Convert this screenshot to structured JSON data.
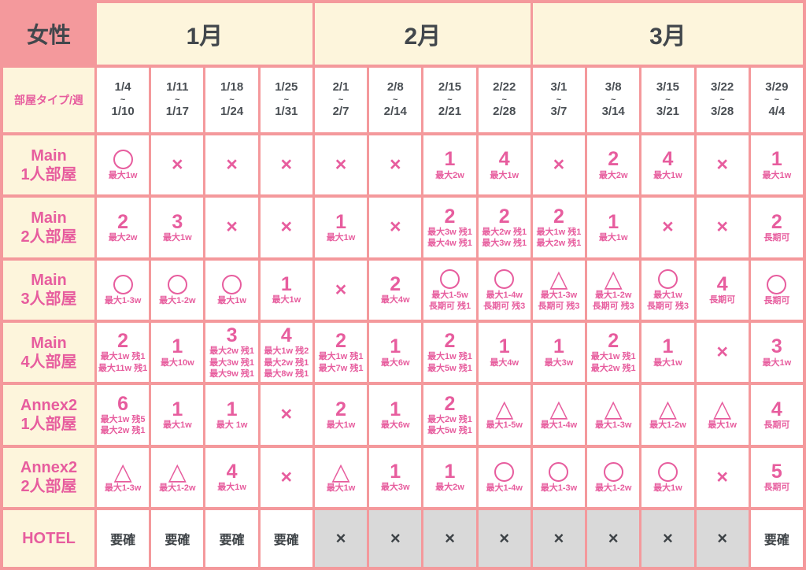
{
  "header": {
    "corner": "女性",
    "months": [
      {
        "label": "1月",
        "span": 4
      },
      {
        "label": "2月",
        "span": 4
      },
      {
        "label": "3月",
        "span": 5
      }
    ]
  },
  "week_row": {
    "label": "部屋タイプ/週",
    "separator": "~",
    "weeks": [
      {
        "start": "1/4",
        "end": "1/10"
      },
      {
        "start": "1/11",
        "end": "1/17"
      },
      {
        "start": "1/18",
        "end": "1/24"
      },
      {
        "start": "1/25",
        "end": "1/31"
      },
      {
        "start": "2/1",
        "end": "2/7"
      },
      {
        "start": "2/8",
        "end": "2/14"
      },
      {
        "start": "2/15",
        "end": "2/21"
      },
      {
        "start": "2/22",
        "end": "2/28"
      },
      {
        "start": "3/1",
        "end": "3/7"
      },
      {
        "start": "3/8",
        "end": "3/14"
      },
      {
        "start": "3/15",
        "end": "3/21"
      },
      {
        "start": "3/22",
        "end": "3/28"
      },
      {
        "start": "3/29",
        "end": "4/4"
      }
    ]
  },
  "legend_symbols": {
    "circle": "○",
    "triangle": "△",
    "cross": "×"
  },
  "rows": [
    {
      "label_lines": [
        "Main",
        "1人部屋"
      ],
      "cells": [
        {
          "v": "○",
          "s": [
            "最大1w"
          ]
        },
        {
          "v": "×"
        },
        {
          "v": "×"
        },
        {
          "v": "×"
        },
        {
          "v": "×"
        },
        {
          "v": "×"
        },
        {
          "v": "1",
          "s": [
            "最大2w"
          ]
        },
        {
          "v": "4",
          "s": [
            "最大1w"
          ]
        },
        {
          "v": "×"
        },
        {
          "v": "2",
          "s": [
            "最大2w"
          ]
        },
        {
          "v": "4",
          "s": [
            "最大1w"
          ]
        },
        {
          "v": "×"
        },
        {
          "v": "1",
          "s": [
            "最大1w"
          ]
        }
      ]
    },
    {
      "label_lines": [
        "Main",
        "2人部屋"
      ],
      "cells": [
        {
          "v": "2",
          "s": [
            "最大2w"
          ]
        },
        {
          "v": "3",
          "s": [
            "最大1w"
          ]
        },
        {
          "v": "×"
        },
        {
          "v": "×"
        },
        {
          "v": "1",
          "s": [
            "最大1w"
          ]
        },
        {
          "v": "×"
        },
        {
          "v": "2",
          "s": [
            "最大3w 残1",
            "最大4w 残1"
          ]
        },
        {
          "v": "2",
          "s": [
            "最大2w 残1",
            "最大3w 残1"
          ]
        },
        {
          "v": "2",
          "s": [
            "最大1w 残1",
            "最大2w 残1"
          ]
        },
        {
          "v": "1",
          "s": [
            "最大1w"
          ]
        },
        {
          "v": "×"
        },
        {
          "v": "×"
        },
        {
          "v": "2",
          "s": [
            "長期可"
          ]
        }
      ]
    },
    {
      "label_lines": [
        "Main",
        "3人部屋"
      ],
      "cells": [
        {
          "v": "○",
          "s": [
            "最大1-3w"
          ]
        },
        {
          "v": "○",
          "s": [
            "最大1-2w"
          ]
        },
        {
          "v": "○",
          "s": [
            "最大1w"
          ]
        },
        {
          "v": "1",
          "s": [
            "最大1w"
          ]
        },
        {
          "v": "×"
        },
        {
          "v": "2",
          "s": [
            "最大4w"
          ]
        },
        {
          "v": "○",
          "s": [
            "最大1-5w",
            "長期可 残1"
          ]
        },
        {
          "v": "○",
          "s": [
            "最大1-4w",
            "長期可 残3"
          ]
        },
        {
          "v": "△",
          "s": [
            "最大1-3w",
            "長期可 残3"
          ]
        },
        {
          "v": "△",
          "s": [
            "最大1-2w",
            "長期可 残3"
          ]
        },
        {
          "v": "○",
          "s": [
            "最大1w",
            "長期可 残3"
          ]
        },
        {
          "v": "4",
          "s": [
            "長期可"
          ]
        },
        {
          "v": "○",
          "s": [
            "長期可"
          ]
        }
      ]
    },
    {
      "label_lines": [
        "Main",
        "4人部屋"
      ],
      "cells": [
        {
          "v": "2",
          "s": [
            "最大1w 残1",
            "最大11w 残1"
          ]
        },
        {
          "v": "1",
          "s": [
            "最大10w"
          ]
        },
        {
          "v": "3",
          "s": [
            "最大2w 残1",
            "最大3w 残1",
            "最大9w 残1"
          ]
        },
        {
          "v": "4",
          "s": [
            "最大1w 残2",
            "最大2w 残1",
            "最大8w 残1"
          ]
        },
        {
          "v": "2",
          "s": [
            "最大1w 残1",
            "最大7w 残1"
          ]
        },
        {
          "v": "1",
          "s": [
            "最大6w"
          ]
        },
        {
          "v": "2",
          "s": [
            "最大1w 残1",
            "最大5w 残1"
          ]
        },
        {
          "v": "1",
          "s": [
            "最大4w"
          ]
        },
        {
          "v": "1",
          "s": [
            "最大3w"
          ]
        },
        {
          "v": "2",
          "s": [
            "最大1w 残1",
            "最大2w 残1"
          ]
        },
        {
          "v": "1",
          "s": [
            "最大1w"
          ]
        },
        {
          "v": "×"
        },
        {
          "v": "3",
          "s": [
            "最大1w"
          ]
        }
      ]
    },
    {
      "label_lines": [
        "Annex2",
        "1人部屋"
      ],
      "cells": [
        {
          "v": "6",
          "s": [
            "最大1w 残5",
            "最大2w 残1"
          ]
        },
        {
          "v": "1",
          "s": [
            "最大1w"
          ]
        },
        {
          "v": "1",
          "s": [
            "最大 1w"
          ]
        },
        {
          "v": "×"
        },
        {
          "v": "2",
          "s": [
            "最大1w"
          ]
        },
        {
          "v": "1",
          "s": [
            "最大6w"
          ]
        },
        {
          "v": "2",
          "s": [
            "最大2w 残1",
            "最大5w 残1"
          ]
        },
        {
          "v": "△",
          "s": [
            "最大1-5w"
          ]
        },
        {
          "v": "△",
          "s": [
            "最大1-4w"
          ]
        },
        {
          "v": "△",
          "s": [
            "最大1-3w"
          ]
        },
        {
          "v": "△",
          "s": [
            "最大1-2w"
          ]
        },
        {
          "v": "△",
          "s": [
            "最大1w"
          ]
        },
        {
          "v": "4",
          "s": [
            "長期可"
          ]
        }
      ]
    },
    {
      "label_lines": [
        "Annex2",
        "2人部屋"
      ],
      "cells": [
        {
          "v": "△",
          "s": [
            "最大1-3w"
          ]
        },
        {
          "v": "△",
          "s": [
            "最大1-2w"
          ]
        },
        {
          "v": "4",
          "s": [
            "最大1w"
          ]
        },
        {
          "v": "×"
        },
        {
          "v": "△",
          "s": [
            "最大1w"
          ]
        },
        {
          "v": "1",
          "s": [
            "最大3w"
          ]
        },
        {
          "v": "1",
          "s": [
            "最大2w"
          ]
        },
        {
          "v": "○",
          "s": [
            "最大1-4w"
          ]
        },
        {
          "v": "○",
          "s": [
            "最大1-3w"
          ]
        },
        {
          "v": "○",
          "s": [
            "最大1-2w"
          ]
        },
        {
          "v": "○",
          "s": [
            "最大1w"
          ]
        },
        {
          "v": "×"
        },
        {
          "v": "5",
          "s": [
            "長期可"
          ]
        }
      ]
    }
  ],
  "hotel_row": {
    "label": "HOTEL",
    "cells": [
      {
        "v": "要確",
        "gray": false
      },
      {
        "v": "要確",
        "gray": false
      },
      {
        "v": "要確",
        "gray": false
      },
      {
        "v": "要確",
        "gray": false
      },
      {
        "v": "×",
        "gray": true
      },
      {
        "v": "×",
        "gray": true
      },
      {
        "v": "×",
        "gray": true
      },
      {
        "v": "×",
        "gray": true
      },
      {
        "v": "×",
        "gray": true
      },
      {
        "v": "×",
        "gray": true
      },
      {
        "v": "×",
        "gray": true
      },
      {
        "v": "×",
        "gray": true
      },
      {
        "v": "要確",
        "gray": false
      }
    ]
  },
  "colors": {
    "accent_pink": "#e75d9e",
    "salmon": "#f4999c",
    "cream": "#fdf5dc",
    "dark_text": "#42474c",
    "gray_cell": "#d9d9d9",
    "cell_bg": "#ffffff"
  }
}
